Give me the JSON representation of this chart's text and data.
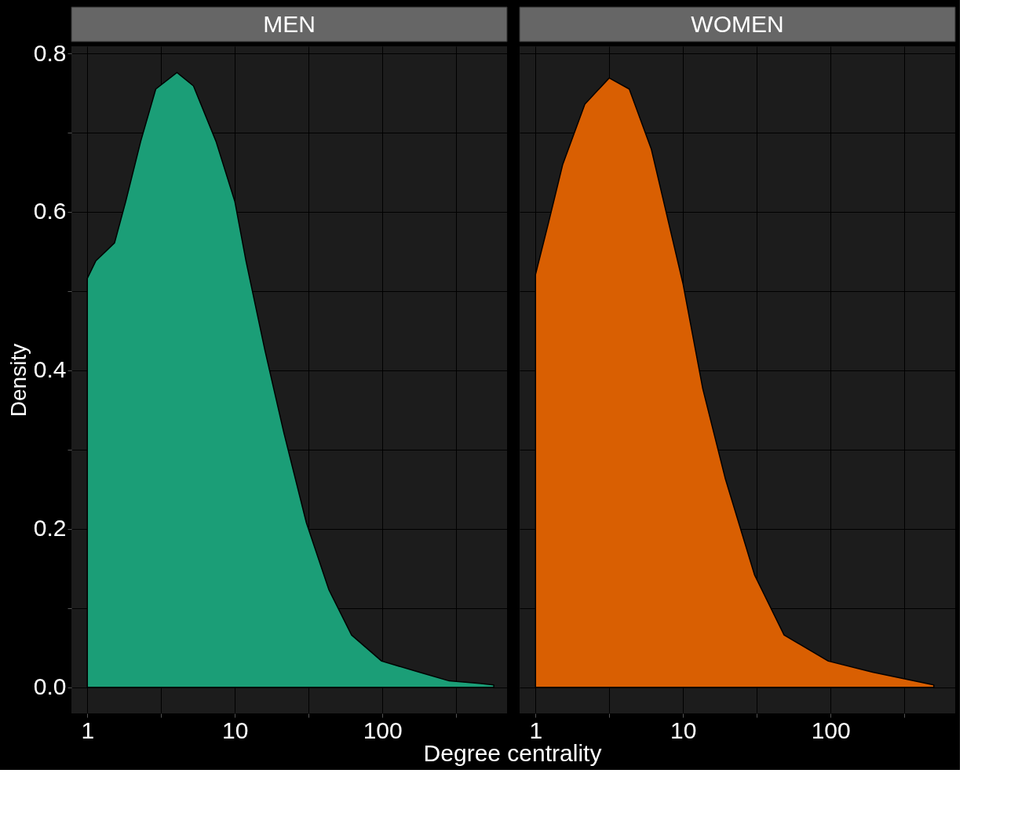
{
  "chart_data": [
    {
      "type": "area",
      "title": "MEN",
      "ylabel": "Density",
      "xlabel": "Degree centrality",
      "log": "x",
      "grid": true,
      "xlim": [
        0.78,
        700
      ],
      "xticks": [
        1,
        {
          "value": 3.16,
          "label": null
        },
        10,
        {
          "value": 31.6,
          "label": null
        },
        100,
        {
          "value": 316,
          "label": null
        }
      ],
      "ylim": [
        -0.033,
        0.809
      ],
      "yticks": [
        {
          "value": 0,
          "label": "0.0"
        },
        {
          "value": 0.1,
          "label": null
        },
        0.2,
        {
          "value": 0.3,
          "label": null
        },
        0.4,
        {
          "value": 0.5,
          "label": null
        },
        0.6,
        {
          "value": 0.7,
          "label": null
        },
        0.8
      ],
      "series": [
        {
          "color": "#1b9e77",
          "x": [
            1,
            1.14,
            1.28,
            1.53,
            1.82,
            2.3,
            2.91,
            4.05,
            5.24,
            7.45,
            10,
            11.9,
            16,
            21.5,
            30.5,
            43.4,
            61.8,
            98.9,
            178,
            284,
            455,
            569
          ],
          "values": [
            0.516,
            0.538,
            0.547,
            0.561,
            0.613,
            0.689,
            0.755,
            0.776,
            0.759,
            0.689,
            0.613,
            0.538,
            0.425,
            0.321,
            0.208,
            0.123,
            0.066,
            0.033,
            0.019,
            0.008,
            0.005,
            0.003
          ]
        }
      ]
    },
    {
      "type": "area",
      "title": "WOMEN",
      "log": "x",
      "grid": true,
      "tick_labels": "x",
      "xlim": [
        0.78,
        700
      ],
      "xticks": [
        1,
        {
          "value": 3.16,
          "label": null
        },
        10,
        {
          "value": 31.6,
          "label": null
        },
        100,
        {
          "value": 316,
          "label": null
        }
      ],
      "ylim": [
        -0.033,
        0.809
      ],
      "yticks": [
        0,
        0.1,
        0.2,
        0.3,
        0.4,
        0.5,
        0.6,
        0.7,
        0.8
      ],
      "series": [
        {
          "color": "#d95f02",
          "x": [
            1,
            1.22,
            1.53,
            2.16,
            3.16,
            4.32,
            6.1,
            10,
            13.6,
            19.3,
            30.5,
            48.4,
            96.6,
            193,
            501
          ],
          "values": [
            0.521,
            0.585,
            0.66,
            0.736,
            0.769,
            0.755,
            0.679,
            0.509,
            0.377,
            0.264,
            0.142,
            0.066,
            0.033,
            0.019,
            0.003
          ]
        }
      ]
    }
  ]
}
